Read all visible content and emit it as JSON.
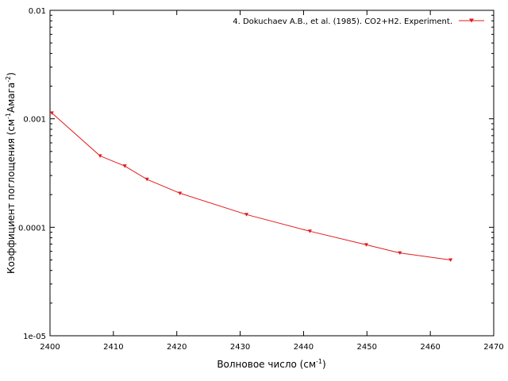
{
  "chart_data": {
    "type": "line",
    "xlabel": {
      "main": "Волновое число (см",
      "sup": "-1",
      "tail": ")"
    },
    "ylabel": {
      "pre": "Коэффициент поглощения (см",
      "sup1": "-1",
      "mid": "Амага",
      "sup2": "-2",
      "tail": ")"
    },
    "xlim": [
      2400,
      2470
    ],
    "ylim": [
      1e-05,
      0.01
    ],
    "yscale": "log",
    "grid": false,
    "legend_position": "top-right",
    "x_ticks": [
      "2400",
      "2410",
      "2420",
      "2430",
      "2440",
      "2450",
      "2460",
      "2470"
    ],
    "y_ticks": [
      "1e-05",
      "0.0001",
      "0.001",
      "0.01"
    ],
    "series": [
      {
        "name": "4. Dokuchaev A.B., et al. (1985). CO2+H2. Experiment.",
        "color": "#e41a1c",
        "marker": "triangle-down",
        "x": [
          2400.3,
          2407.9,
          2411.8,
          2415.3,
          2420.5,
          2431.0,
          2441.0,
          2449.9,
          2455.2,
          2463.2
        ],
        "y": [
          0.00113,
          0.000455,
          0.000367,
          0.000277,
          0.000206,
          0.000131,
          9.2e-05,
          6.9e-05,
          5.8e-05,
          5e-05
        ]
      }
    ]
  }
}
